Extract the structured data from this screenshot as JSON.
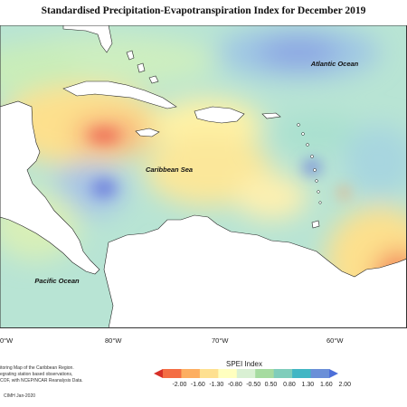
{
  "title": "Standardised Precipitation-Evapotranspiration Index for December 2019",
  "map_labels": {
    "atlantic": "Atlantic Ocean",
    "caribbean": "Caribbean Sea",
    "pacific": "Pacific Ocean"
  },
  "longitude_labels": [
    "80°W",
    "70°W",
    "60°W"
  ],
  "longitude_partial_left": "0°W",
  "legend": {
    "title": "SPEI Index",
    "ticks": [
      "-2.00",
      "-1.60",
      "-1.30",
      "-0.80",
      "-0.50",
      "0.50",
      "0.80",
      "1.30",
      "1.60",
      "2.00"
    ],
    "colors": [
      "#d73027",
      "#f46d43",
      "#fdae61",
      "#fee090",
      "#ffffbf",
      "#d9f0d3",
      "#a6dba0",
      "#7fcdbb",
      "#41b6c4",
      "#6a8fd8",
      "#4d6fd9"
    ]
  },
  "notes": [
    "itoring Map of the Caribbean Region.",
    "egrating station based observations,",
    "COF, with NCEP/NCAR Reanalysis Data.",
    "CIMH Jan-2020"
  ]
}
